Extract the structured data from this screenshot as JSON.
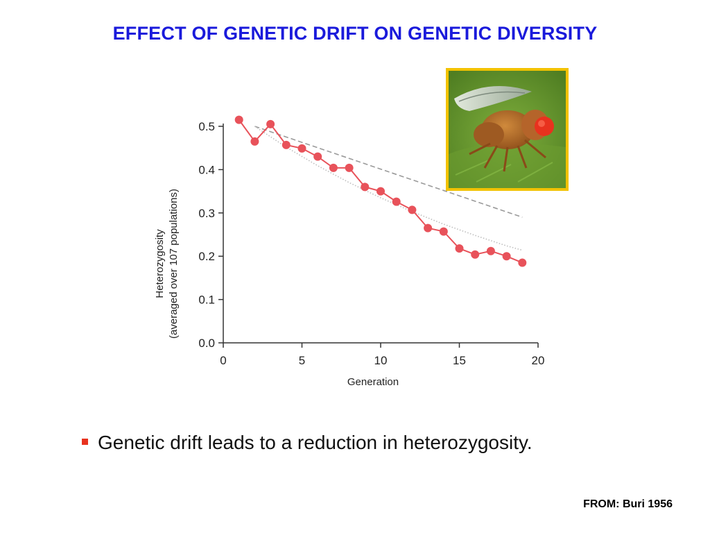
{
  "slide": {
    "title": "EFFECT OF GENETIC DRIFT ON GENETIC DIVERSITY",
    "bullet": "Genetic drift leads to a reduction in heterozygosity.",
    "source": "FROM: Buri 1956",
    "image": "fruit-fly-photo"
  },
  "chart_data": {
    "type": "line",
    "xlabel": "Generation",
    "ylabel_lines": [
      "Heterozygosity",
      "(averaged over 107 populations)"
    ],
    "xlim": [
      0,
      20
    ],
    "ylim": [
      0,
      0.5
    ],
    "xticks": [
      0,
      5,
      10,
      15,
      20
    ],
    "xtick_labels": [
      "0",
      "5",
      "10",
      "15",
      "20"
    ],
    "yticks": [
      0,
      0.1,
      0.2,
      0.3,
      0.4,
      0.5
    ],
    "ytick_labels": [
      "0.0",
      "0.1",
      "0.2",
      "0.3",
      "0.4",
      "0.5"
    ],
    "grid": false,
    "colors": {
      "observed": "#e8525a",
      "dashed_curve": "#9a9a9a",
      "dotted_curve": "#bdbdbd"
    },
    "series": [
      {
        "style": "solid-with-markers",
        "x": [
          1,
          2,
          3,
          4,
          5,
          6,
          7,
          8,
          9,
          10,
          11,
          12,
          13,
          14,
          15,
          16,
          17,
          18,
          19
        ],
        "y": [
          0.515,
          0.465,
          0.505,
          0.457,
          0.449,
          0.43,
          0.404,
          0.404,
          0.36,
          0.35,
          0.326,
          0.307,
          0.265,
          0.257,
          0.218,
          0.204,
          0.212,
          0.2,
          0.185
        ]
      },
      {
        "style": "dashed",
        "x": [
          2,
          19
        ],
        "y": [
          0.5,
          0.29
        ]
      },
      {
        "style": "dotted",
        "x": [
          2,
          4,
          6,
          8,
          10,
          12,
          14,
          16,
          18,
          19
        ],
        "y": [
          0.5,
          0.452,
          0.409,
          0.37,
          0.335,
          0.303,
          0.274,
          0.248,
          0.224,
          0.214
        ]
      }
    ]
  }
}
